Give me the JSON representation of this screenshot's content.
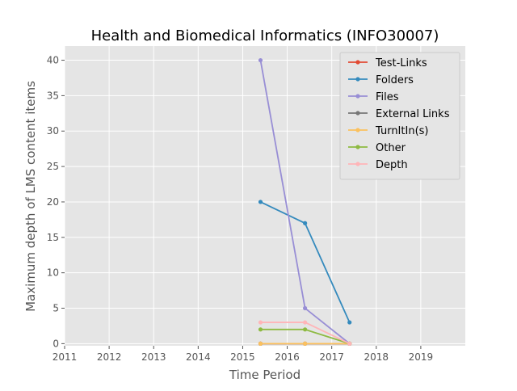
{
  "chart_data": {
    "type": "line",
    "title": "Health and Biomedical Informatics (INFO30007)",
    "xlabel": "Time Period",
    "ylabel": "Maximum depth of LMS content items",
    "xlim": [
      2011,
      2020
    ],
    "ylim": [
      -0.3,
      42.0
    ],
    "xticks": [
      2011,
      2012,
      2013,
      2014,
      2015,
      2016,
      2017,
      2018,
      2019
    ],
    "yticks": [
      0,
      5,
      10,
      15,
      20,
      25,
      30,
      35,
      40
    ],
    "grid": true,
    "legend_position": "top-right",
    "x": [
      2015.4,
      2016.4,
      2017.4
    ],
    "series": [
      {
        "name": "Test-Links",
        "color": "#E24A33",
        "values": [
          0,
          0,
          0
        ]
      },
      {
        "name": "Folders",
        "color": "#348ABD",
        "values": [
          20,
          17,
          3
        ]
      },
      {
        "name": "Files",
        "color": "#988ED5",
        "values": [
          40,
          5,
          0
        ]
      },
      {
        "name": "External Links",
        "color": "#777777",
        "values": [
          0,
          0,
          0
        ]
      },
      {
        "name": "TurnItIn(s)",
        "color": "#FBC15E",
        "values": [
          0,
          0,
          0
        ]
      },
      {
        "name": "Other",
        "color": "#8EBA42",
        "values": [
          2,
          2,
          0
        ]
      },
      {
        "name": "Depth",
        "color": "#FFB5B8",
        "values": [
          3,
          3,
          0
        ]
      }
    ]
  }
}
